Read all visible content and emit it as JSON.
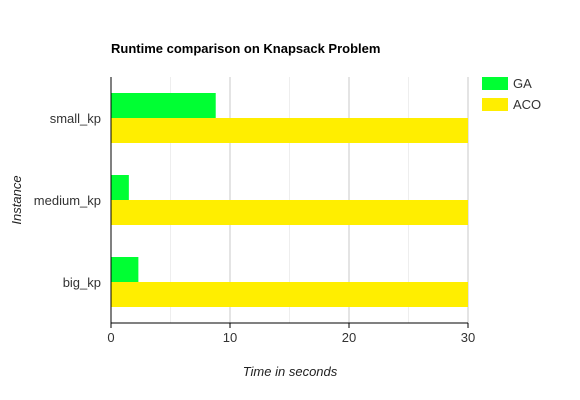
{
  "chart_data": {
    "type": "bar",
    "orientation": "horizontal",
    "title": "Runtime comparison on Knapsack Problem",
    "xlabel": "Time in seconds",
    "ylabel": "Instance",
    "categories": [
      "small_kp",
      "medium_kp",
      "big_kp"
    ],
    "series": [
      {
        "name": "GA",
        "color": "#00ff33",
        "values": [
          8.8,
          1.5,
          2.3
        ]
      },
      {
        "name": "ACO",
        "color": "#ffee00",
        "values": [
          30,
          30,
          30
        ]
      }
    ],
    "xlim": [
      0,
      30
    ],
    "xticks": [
      0,
      10,
      20,
      30
    ],
    "grid": true,
    "legend": "top-right"
  }
}
